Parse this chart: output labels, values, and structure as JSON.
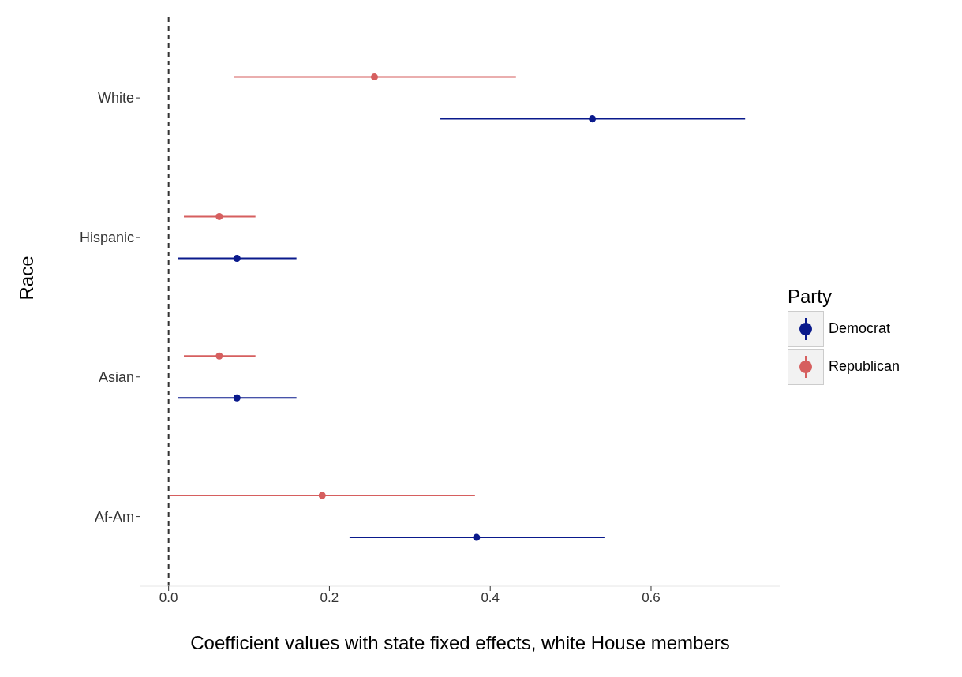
{
  "chart_data": {
    "type": "scatter",
    "orientation": "horizontal",
    "categories": [
      "White",
      "Hispanic",
      "Asian",
      "Af-Am"
    ],
    "xlabel": "Coefficient values with state fixed effects, white House members",
    "ylabel": "Race",
    "legend_title": "Party",
    "legend": "right",
    "grid": false,
    "marker": "circle",
    "xlim": [
      -0.035,
      0.76
    ],
    "xticks": [
      {
        "value": 0,
        "label": "0.0"
      },
      0.2,
      0.4,
      0.6
    ],
    "ref_lines": [
      {
        "axis": "x",
        "value": 0,
        "line_style": "dashed",
        "color": "#333333"
      }
    ],
    "series": [
      {
        "name": "Democrat",
        "color": "#0a1a8c",
        "values": [
          0.527,
          0.085,
          0.085,
          0.383
        ],
        "errors": [
          [
            0.338,
            0.717
          ],
          [
            0.012,
            0.159
          ],
          [
            0.012,
            0.159
          ],
          [
            0.225,
            0.542
          ]
        ]
      },
      {
        "name": "Republican",
        "color": "#d65f5f",
        "values": [
          0.256,
          0.063,
          0.063,
          0.191
        ],
        "errors": [
          [
            0.081,
            0.432
          ],
          [
            0.019,
            0.108
          ],
          [
            0.019,
            0.108
          ],
          [
            0.002,
            0.381
          ]
        ]
      }
    ]
  }
}
